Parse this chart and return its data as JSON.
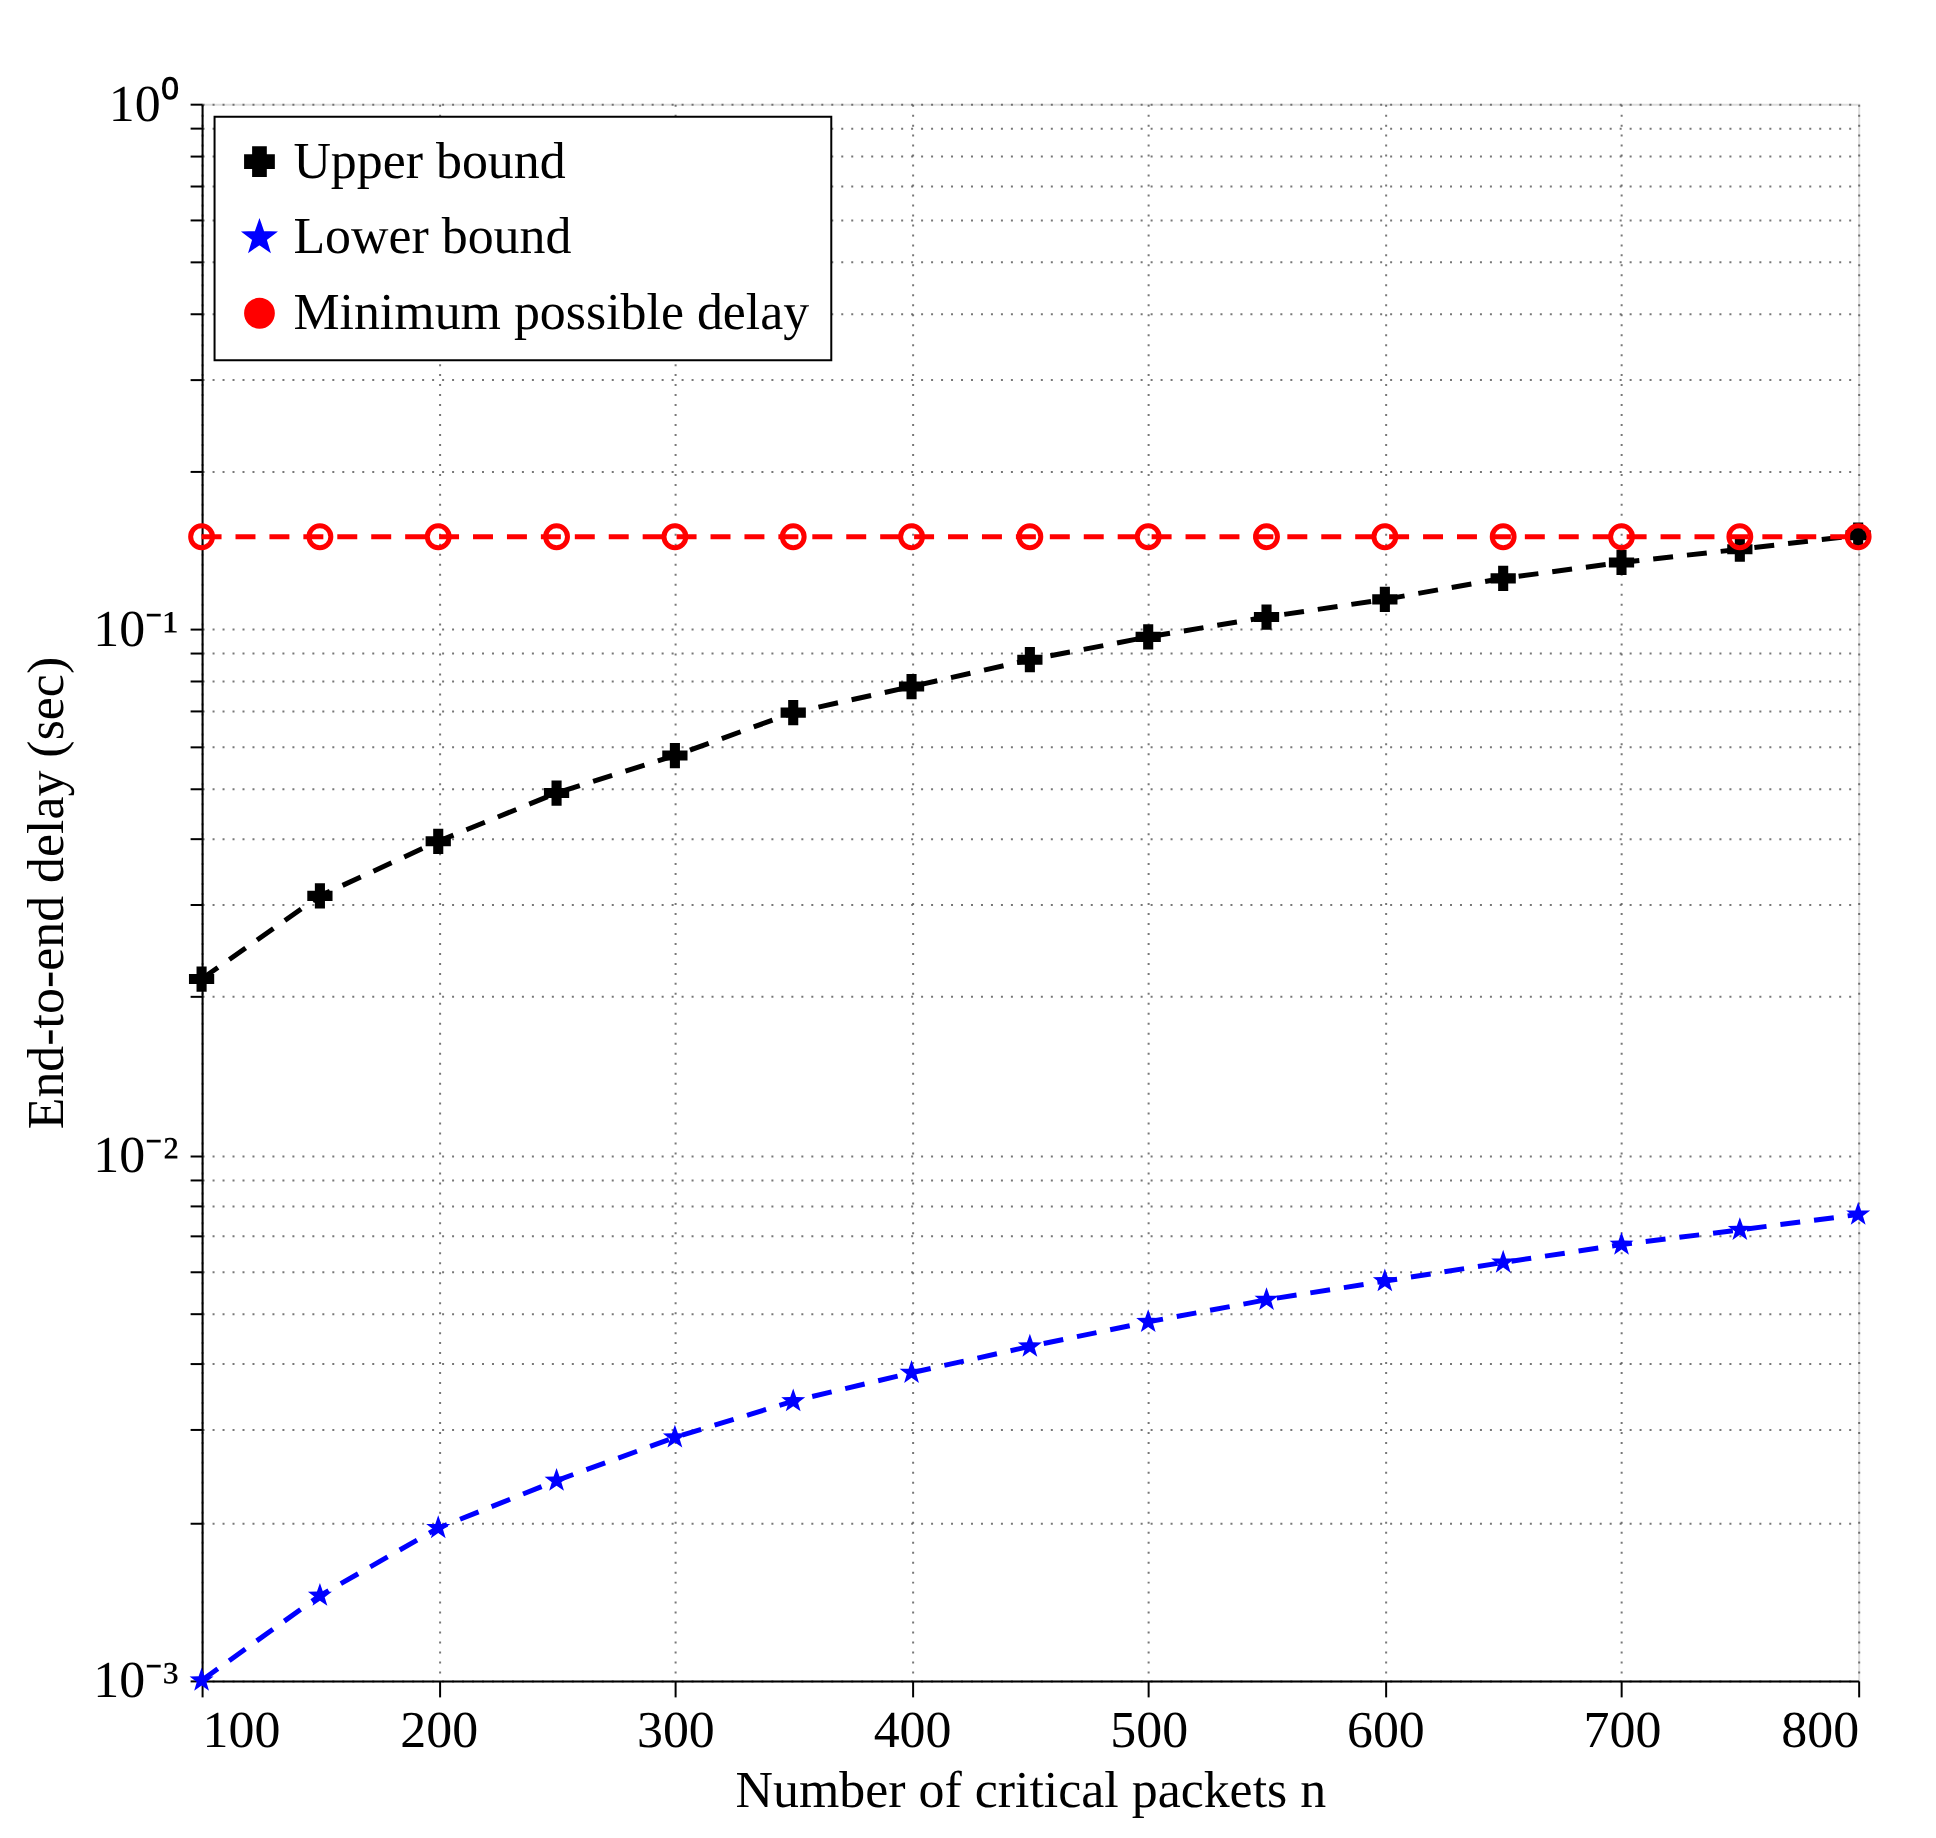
{
  "chart_data": {
    "type": "line",
    "xlabel": "Number of critical packets n",
    "ylabel": "End-to-end delay (sec)",
    "x": [
      100,
      150,
      200,
      250,
      300,
      350,
      400,
      450,
      500,
      550,
      600,
      650,
      700,
      750,
      800
    ],
    "series": [
      {
        "name": "Upper bound",
        "color": "#000000",
        "marker": "cross",
        "line_style": "dashed",
        "values": [
          0.0216,
          0.0311,
          0.0395,
          0.0488,
          0.0575,
          0.0694,
          0.0778,
          0.0875,
          0.0967,
          0.1055,
          0.114,
          0.125,
          0.134,
          0.142,
          0.151
        ]
      },
      {
        "name": "Lower bound",
        "color": "#0000ff",
        "marker": "star",
        "line_style": "dashed",
        "values": [
          0.001,
          0.00145,
          0.00195,
          0.0024,
          0.0029,
          0.0034,
          0.00385,
          0.00432,
          0.00481,
          0.0053,
          0.00575,
          0.00624,
          0.00675,
          0.0072,
          0.0077
        ]
      },
      {
        "name": "Minimum possible delay",
        "color": "#ff0000",
        "marker": "circle",
        "line_style": "dashed",
        "values": [
          0.15,
          0.15,
          0.15,
          0.15,
          0.15,
          0.15,
          0.15,
          0.15,
          0.15,
          0.15,
          0.15,
          0.15,
          0.15,
          0.15,
          0.15
        ]
      }
    ],
    "log": true,
    "xlim": [
      100,
      800
    ],
    "xticks": [
      100,
      200,
      300,
      400,
      500,
      600,
      700,
      800
    ],
    "ylim": [
      0.001,
      1
    ],
    "yticks": [
      {
        "value": 0.001,
        "label": "10⁻³"
      },
      {
        "value": 0.002,
        "label": null
      },
      {
        "value": 0.003,
        "label": null
      },
      {
        "value": 0.004,
        "label": null
      },
      {
        "value": 0.005,
        "label": null
      },
      {
        "value": 0.006,
        "label": null
      },
      {
        "value": 0.007,
        "label": null
      },
      {
        "value": 0.008,
        "label": null
      },
      {
        "value": 0.009,
        "label": null
      },
      {
        "value": 0.01,
        "label": "10⁻²"
      },
      {
        "value": 0.02,
        "label": null
      },
      {
        "value": 0.03,
        "label": null
      },
      {
        "value": 0.04,
        "label": null
      },
      {
        "value": 0.05,
        "label": null
      },
      {
        "value": 0.06,
        "label": null
      },
      {
        "value": 0.07,
        "label": null
      },
      {
        "value": 0.08,
        "label": null
      },
      {
        "value": 0.09,
        "label": null
      },
      {
        "value": 0.1,
        "label": "10⁻¹"
      },
      {
        "value": 0.2,
        "label": null
      },
      {
        "value": 0.3,
        "label": null
      },
      {
        "value": 0.4,
        "label": null
      },
      {
        "value": 0.5,
        "label": null
      },
      {
        "value": 0.6,
        "label": null
      },
      {
        "value": 0.7,
        "label": null
      },
      {
        "value": 0.8,
        "label": null
      },
      {
        "value": 0.9,
        "label": null
      },
      {
        "value": 1,
        "label": "10⁰"
      }
    ],
    "grid": true,
    "legend": "top left"
  }
}
